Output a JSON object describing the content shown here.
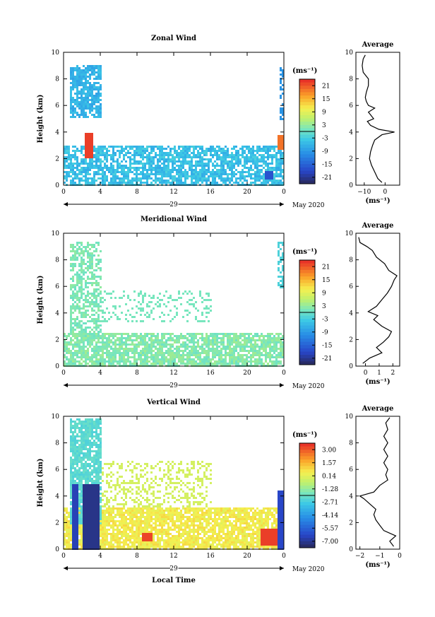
{
  "chart_data": [
    {
      "type": "heatmap",
      "title": "Zonal Wind",
      "ylabel": "Height (km)",
      "xlabel": "",
      "x_ticks": [
        "0",
        "4",
        "8",
        "12",
        "16",
        "20",
        "0"
      ],
      "y_ticks": [
        "0",
        "2",
        "4",
        "6",
        "8",
        "10"
      ],
      "xlim": [
        0,
        24
      ],
      "ylim": [
        0,
        10
      ],
      "date_label": "29",
      "date_suffix": "May 2020",
      "colorbar": {
        "unit": "(ms⁻¹)",
        "ticks": [
          "21",
          "15",
          "9",
          "3",
          "-3",
          "-9",
          "-15",
          "-21"
        ],
        "range": [
          -24,
          24
        ]
      },
      "average_profile": {
        "title": "Average",
        "xlabel": "(ms⁻¹)",
        "x_ticks": [
          "−10",
          "0"
        ],
        "xlim": [
          -14,
          7
        ],
        "heights": [
          0.2,
          0.5,
          1.0,
          1.5,
          2.0,
          2.5,
          3.0,
          3.4,
          3.8,
          4.0,
          4.2,
          4.5,
          4.8,
          5.0,
          5.5,
          5.8,
          6.0,
          6.3,
          6.6,
          7.0,
          7.5,
          8.0,
          8.5,
          9.0,
          9.5,
          9.8
        ],
        "values": [
          -1.5,
          -3.5,
          -5.0,
          -6.5,
          -7.5,
          -7.0,
          -6.0,
          -5.0,
          -1.5,
          4.5,
          -3.0,
          -7.0,
          -8.5,
          -5.5,
          -8.0,
          -5.0,
          -8.0,
          -9.0,
          -9.5,
          -9.0,
          -8.0,
          -8.0,
          -10.5,
          -11.0,
          -10.5,
          -9.5
        ]
      }
    },
    {
      "type": "heatmap",
      "title": "Meridional Wind",
      "ylabel": "Height (km)",
      "xlabel": "",
      "x_ticks": [
        "0",
        "4",
        "8",
        "12",
        "16",
        "20",
        "0"
      ],
      "y_ticks": [
        "0",
        "2",
        "4",
        "6",
        "8",
        "10"
      ],
      "xlim": [
        0,
        24
      ],
      "ylim": [
        0,
        10
      ],
      "date_label": "29",
      "date_suffix": "May 2020",
      "colorbar": {
        "unit": "(ms⁻¹)",
        "ticks": [
          "21",
          "15",
          "9",
          "3",
          "-3",
          "-9",
          "-15",
          "-21"
        ],
        "range": [
          -24,
          24
        ]
      },
      "average_profile": {
        "title": "Average",
        "xlabel": "(ms⁻¹)",
        "x_ticks": [
          "0",
          "1",
          "2"
        ],
        "xlim": [
          -0.7,
          2.5
        ],
        "heights": [
          0.2,
          0.6,
          1.0,
          1.4,
          1.8,
          2.2,
          2.6,
          3.0,
          3.5,
          3.8,
          4.1,
          4.5,
          5.0,
          5.5,
          6.0,
          6.5,
          6.8,
          7.2,
          7.7,
          8.2,
          8.7,
          9.0,
          9.3,
          9.7
        ],
        "values": [
          -0.2,
          0.3,
          1.2,
          0.8,
          1.3,
          1.7,
          1.9,
          1.2,
          0.6,
          0.9,
          0.2,
          0.8,
          1.2,
          1.6,
          1.9,
          2.1,
          2.3,
          1.7,
          1.4,
          0.8,
          0.5,
          0.1,
          -0.4,
          -0.5
        ]
      }
    },
    {
      "type": "heatmap",
      "title": "Vertical Wind",
      "ylabel": "Height (km)",
      "xlabel": "Local Time",
      "x_ticks": [
        "0",
        "4",
        "8",
        "12",
        "16",
        "20",
        "0"
      ],
      "y_ticks": [
        "0",
        "2",
        "4",
        "6",
        "8",
        "10"
      ],
      "xlim": [
        0,
        24
      ],
      "ylim": [
        0,
        10
      ],
      "date_label": "29",
      "date_suffix": "May 2020",
      "colorbar": {
        "unit": "(ms⁻¹)",
        "ticks": [
          "3.00",
          "1.57",
          "0.14",
          "-1.28",
          "-2.71",
          "-4.14",
          "-5.57",
          "-7.00"
        ],
        "range": [
          -8,
          4
        ]
      },
      "average_profile": {
        "title": "Average",
        "xlabel": "(ms⁻¹)",
        "x_ticks": [
          "−2",
          "−1",
          "0"
        ],
        "xlim": [
          -2.2,
          0
        ],
        "heights": [
          0.2,
          0.6,
          1.0,
          1.4,
          1.8,
          2.2,
          2.6,
          3.0,
          3.4,
          3.8,
          4.0,
          4.3,
          4.8,
          5.2,
          5.6,
          6.0,
          6.5,
          7.0,
          7.5,
          8.0,
          8.5,
          9.0,
          9.5,
          9.9
        ],
        "values": [
          -0.3,
          -0.5,
          -0.2,
          -0.8,
          -1.0,
          -1.2,
          -1.3,
          -1.2,
          -1.5,
          -1.8,
          -2.0,
          -1.3,
          -1.0,
          -0.6,
          -0.7,
          -0.6,
          -0.8,
          -0.6,
          -0.8,
          -0.6,
          -0.8,
          -0.6,
          -0.7,
          -0.5
        ]
      }
    }
  ]
}
